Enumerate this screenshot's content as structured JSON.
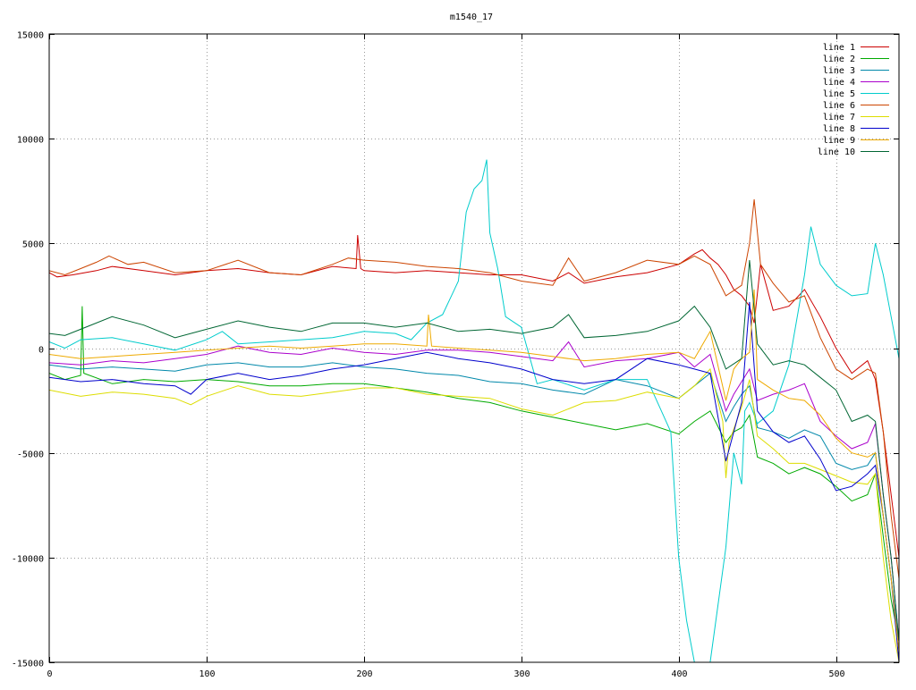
{
  "chart_data": {
    "type": "line",
    "title": "m1540_17",
    "xlabel": "",
    "ylabel": "",
    "xlim": [
      0,
      540
    ],
    "ylim": [
      -15000,
      15000
    ],
    "x_ticks": [
      0,
      100,
      200,
      300,
      400,
      500
    ],
    "y_ticks": [
      15000,
      10000,
      5000,
      0,
      -5000,
      -10000,
      -15000
    ],
    "grid": true,
    "legend_position": "top-right",
    "series": [
      {
        "name": "line 1",
        "color": "#cc0000",
        "x": [
          0,
          5,
          15,
          30,
          40,
          60,
          80,
          100,
          120,
          140,
          160,
          180,
          195,
          196,
          198,
          200,
          220,
          240,
          260,
          280,
          300,
          320,
          330,
          340,
          360,
          380,
          400,
          410,
          415,
          420,
          425,
          430,
          435,
          440,
          445,
          448,
          452,
          460,
          470,
          480,
          490,
          500,
          510,
          520,
          525,
          530,
          535,
          540
        ],
        "y": [
          3600,
          3400,
          3500,
          3700,
          3900,
          3700,
          3500,
          3700,
          3800,
          3600,
          3500,
          3900,
          3800,
          5400,
          3800,
          3700,
          3600,
          3700,
          3600,
          3500,
          3500,
          3200,
          3600,
          3100,
          3400,
          3600,
          4000,
          4500,
          4700,
          4300,
          4000,
          3500,
          2800,
          2500,
          2000,
          1200,
          4000,
          1800,
          2000,
          2800,
          1500,
          0,
          -1200,
          -600,
          -1500,
          -4000,
          -7000,
          -10000
        ]
      },
      {
        "name": "line 2",
        "color": "#00aa00",
        "x": [
          0,
          10,
          20,
          21,
          22,
          40,
          60,
          80,
          100,
          120,
          140,
          160,
          180,
          200,
          220,
          240,
          260,
          280,
          300,
          320,
          340,
          360,
          380,
          400,
          410,
          420,
          430,
          435,
          440,
          445,
          450,
          460,
          470,
          480,
          490,
          500,
          510,
          520,
          525,
          530,
          535,
          540
        ],
        "y": [
          -1200,
          -1500,
          -1300,
          2000,
          -1200,
          -1700,
          -1500,
          -1600,
          -1500,
          -1600,
          -1800,
          -1800,
          -1700,
          -1700,
          -1900,
          -2100,
          -2400,
          -2600,
          -3000,
          -3300,
          -3600,
          -3900,
          -3600,
          -4100,
          -3500,
          -3000,
          -4500,
          -4000,
          -3800,
          -3200,
          -5200,
          -5500,
          -6000,
          -5700,
          -6000,
          -6600,
          -7300,
          -7000,
          -6000,
          -9000,
          -12000,
          -14000
        ]
      },
      {
        "name": "line 3",
        "color": "#0088aa",
        "x": [
          0,
          20,
          40,
          60,
          80,
          100,
          120,
          140,
          160,
          180,
          200,
          220,
          240,
          260,
          280,
          300,
          320,
          340,
          360,
          380,
          400,
          410,
          420,
          430,
          435,
          440,
          445,
          450,
          460,
          470,
          480,
          490,
          500,
          510,
          520,
          525,
          530,
          535,
          540
        ],
        "y": [
          -800,
          -1000,
          -900,
          -1000,
          -1100,
          -800,
          -700,
          -900,
          -900,
          -700,
          -900,
          -1000,
          -1200,
          -1300,
          -1600,
          -1700,
          -2000,
          -2200,
          -1500,
          -1800,
          -2400,
          -1800,
          -1200,
          -3500,
          -2800,
          -2200,
          -1800,
          -3800,
          -4000,
          -4300,
          -3900,
          -4200,
          -5500,
          -5800,
          -5600,
          -5000,
          -8000,
          -11000,
          -14000
        ]
      },
      {
        "name": "line 4",
        "color": "#aa00cc",
        "x": [
          0,
          20,
          40,
          60,
          80,
          100,
          120,
          140,
          160,
          180,
          200,
          220,
          240,
          260,
          280,
          300,
          320,
          330,
          340,
          360,
          380,
          400,
          410,
          420,
          430,
          435,
          440,
          445,
          450,
          460,
          470,
          480,
          490,
          500,
          510,
          520,
          525,
          530,
          535,
          540
        ],
        "y": [
          -700,
          -800,
          -600,
          -700,
          -500,
          -300,
          100,
          -200,
          -300,
          0,
          -200,
          -300,
          -100,
          -100,
          -200,
          -400,
          -600,
          300,
          -900,
          -600,
          -500,
          -200,
          -900,
          -300,
          -3000,
          -2200,
          -1600,
          -1000,
          -2500,
          -2200,
          -2000,
          -1700,
          -3500,
          -4200,
          -4800,
          -4500,
          -3600,
          -7000,
          -10000,
          -14000
        ]
      },
      {
        "name": "line 5",
        "color": "#00cccc",
        "x": [
          0,
          10,
          20,
          40,
          60,
          80,
          100,
          110,
          120,
          140,
          160,
          180,
          200,
          220,
          230,
          240,
          250,
          260,
          265,
          270,
          275,
          278,
          280,
          285,
          290,
          300,
          310,
          320,
          340,
          360,
          380,
          395,
          400,
          405,
          410,
          412,
          420,
          430,
          435,
          440,
          442,
          445,
          450,
          460,
          470,
          480,
          484,
          490,
          500,
          510,
          520,
          525,
          530,
          535,
          540
        ],
        "y": [
          300,
          0,
          400,
          500,
          200,
          -100,
          400,
          800,
          200,
          300,
          400,
          500,
          800,
          700,
          400,
          1200,
          1600,
          3200,
          6500,
          7600,
          8000,
          9000,
          5500,
          3800,
          1500,
          1000,
          -1700,
          -1500,
          -2000,
          -1500,
          -1500,
          -4000,
          -10000,
          -13000,
          -15000,
          -15000,
          -15000,
          -9500,
          -5000,
          -6500,
          -3000,
          -2600,
          -3600,
          -3000,
          -800,
          3500,
          5800,
          4000,
          3000,
          2500,
          2600,
          5000,
          3500,
          1500,
          -500
        ]
      },
      {
        "name": "line 6",
        "color": "#cc4400",
        "x": [
          0,
          10,
          20,
          30,
          38,
          50,
          60,
          80,
          100,
          120,
          140,
          160,
          180,
          190,
          200,
          220,
          240,
          260,
          280,
          300,
          320,
          330,
          340,
          360,
          380,
          400,
          410,
          420,
          430,
          440,
          445,
          448,
          452,
          460,
          470,
          480,
          490,
          500,
          510,
          520,
          525,
          530,
          535,
          540
        ],
        "y": [
          3700,
          3500,
          3800,
          4100,
          4400,
          4000,
          4100,
          3600,
          3700,
          4200,
          3600,
          3500,
          4000,
          4300,
          4200,
          4100,
          3900,
          3800,
          3600,
          3200,
          3000,
          4300,
          3200,
          3600,
          4200,
          4000,
          4400,
          4000,
          2500,
          3000,
          5000,
          7100,
          4000,
          3100,
          2200,
          2500,
          500,
          -1000,
          -1500,
          -1000,
          -1200,
          -4000,
          -8000,
          -11000
        ]
      },
      {
        "name": "line 7",
        "color": "#dddd00",
        "x": [
          0,
          20,
          40,
          60,
          80,
          90,
          100,
          120,
          140,
          160,
          180,
          200,
          220,
          240,
          260,
          280,
          300,
          320,
          340,
          360,
          380,
          400,
          410,
          420,
          428,
          430,
          432,
          440,
          445,
          450,
          460,
          470,
          480,
          490,
          500,
          510,
          520,
          525,
          530,
          535,
          540
        ],
        "y": [
          -2000,
          -2300,
          -2100,
          -2200,
          -2400,
          -2700,
          -2300,
          -1800,
          -2200,
          -2300,
          -2100,
          -1900,
          -1900,
          -2200,
          -2300,
          -2400,
          -2900,
          -3200,
          -2600,
          -2500,
          -2100,
          -2400,
          -1800,
          -1000,
          -3500,
          -6200,
          -4500,
          -2800,
          -1500,
          -4200,
          -4800,
          -5500,
          -5500,
          -5800,
          -6100,
          -6400,
          -6500,
          -6000,
          -10000,
          -13000,
          -15000
        ]
      },
      {
        "name": "line 8",
        "color": "#0000cc",
        "x": [
          0,
          20,
          40,
          60,
          80,
          90,
          100,
          120,
          140,
          160,
          180,
          200,
          220,
          240,
          260,
          280,
          300,
          320,
          340,
          360,
          380,
          400,
          410,
          420,
          430,
          440,
          445,
          450,
          460,
          470,
          480,
          490,
          500,
          510,
          520,
          525,
          530,
          535,
          540
        ],
        "y": [
          -1400,
          -1600,
          -1500,
          -1700,
          -1800,
          -2200,
          -1500,
          -1200,
          -1500,
          -1300,
          -1000,
          -800,
          -500,
          -200,
          -500,
          -700,
          -1000,
          -1500,
          -1700,
          -1500,
          -500,
          -800,
          -1000,
          -1200,
          -5400,
          -2600,
          2200,
          -3000,
          -4000,
          -4500,
          -4200,
          -5300,
          -6800,
          -6600,
          -6000,
          -5600,
          -8000,
          -11000,
          -15000
        ]
      },
      {
        "name": "line 9",
        "color": "#eeaa00",
        "x": [
          0,
          20,
          40,
          60,
          80,
          100,
          120,
          140,
          160,
          180,
          200,
          220,
          240,
          241,
          243,
          260,
          280,
          300,
          320,
          340,
          360,
          380,
          400,
          410,
          420,
          430,
          435,
          440,
          445,
          448,
          450,
          460,
          470,
          480,
          490,
          500,
          510,
          520,
          525,
          530,
          535,
          540
        ],
        "y": [
          -300,
          -500,
          -400,
          -300,
          -200,
          -100,
          0,
          100,
          0,
          100,
          200,
          200,
          100,
          1600,
          100,
          0,
          -100,
          -200,
          -400,
          -600,
          -500,
          -300,
          -200,
          -500,
          800,
          -2500,
          -1000,
          -500,
          -200,
          2800,
          -1500,
          -2000,
          -2400,
          -2500,
          -3200,
          -4300,
          -5000,
          -5200,
          -5000,
          -8000,
          -11000,
          -14500
        ]
      },
      {
        "name": "line 10",
        "color": "#006633",
        "x": [
          0,
          10,
          20,
          40,
          60,
          80,
          100,
          120,
          140,
          160,
          180,
          200,
          220,
          240,
          260,
          280,
          300,
          320,
          330,
          340,
          360,
          380,
          400,
          410,
          415,
          420,
          430,
          440,
          445,
          450,
          460,
          470,
          480,
          490,
          500,
          510,
          520,
          525,
          530,
          535,
          540
        ],
        "y": [
          700,
          600,
          900,
          1500,
          1100,
          500,
          900,
          1300,
          1000,
          800,
          1200,
          1200,
          1000,
          1200,
          800,
          900,
          700,
          1000,
          1600,
          500,
          600,
          800,
          1300,
          2000,
          1500,
          1000,
          -1000,
          -500,
          4200,
          200,
          -800,
          -600,
          -800,
          -1400,
          -2000,
          -3500,
          -3200,
          -3500,
          -7000,
          -10000,
          -14000
        ]
      }
    ]
  }
}
